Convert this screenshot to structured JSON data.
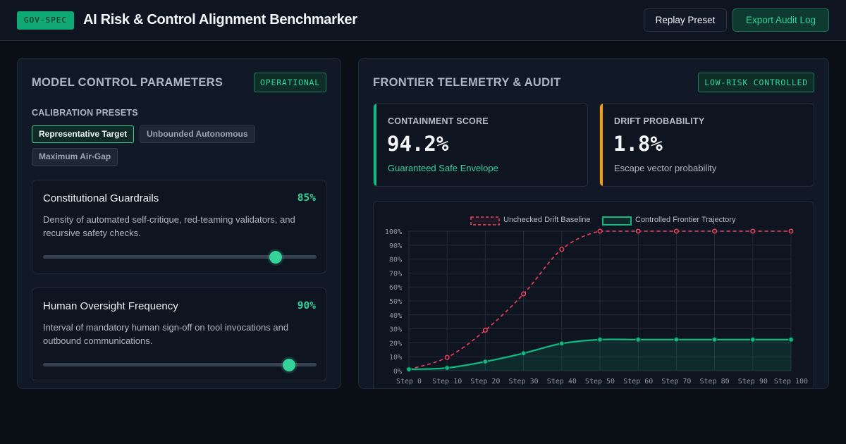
{
  "header": {
    "badge": "GOV-SPEC",
    "title": "AI Risk & Control Alignment Benchmarker",
    "replay_label": "Replay Preset",
    "export_label": "Export Audit Log"
  },
  "left_panel": {
    "title": "MODEL CONTROL PARAMETERS",
    "status": "OPERATIONAL",
    "presets_label": "CALIBRATION PRESETS",
    "presets": [
      "Representative Target",
      "Unbounded Autonomous",
      "Maximum Air-Gap"
    ],
    "active_preset": "Representative Target",
    "params": [
      {
        "name": "Constitutional Guardrails",
        "value_text": "85%",
        "value": 0.85,
        "description": "Density of automated self-critique, red-teaming validators, and recursive safety checks."
      },
      {
        "name": "Human Oversight Frequency",
        "value_text": "90%",
        "value": 0.9,
        "description": "Interval of mandatory human sign-off on tool invocations and outbound communications."
      }
    ]
  },
  "right_panel": {
    "title": "FRONTIER TELEMETRY & AUDIT",
    "status": "LOW-RISK CONTROLLED",
    "metrics": [
      {
        "label": "CONTAINMENT SCORE",
        "value": "94.2%",
        "sub": "Guaranteed Safe Envelope",
        "accent": "#10b981",
        "sub_color": "#34d399"
      },
      {
        "label": "DRIFT PROBABILITY",
        "value": "1.8%",
        "sub": "Escape vector probability",
        "accent": "#f59e0b",
        "sub_color": "#aeb6c2"
      }
    ]
  },
  "colors": {
    "accent_green": "#34d399",
    "accent_red": "#f43f5e",
    "accent_amber": "#f59e0b"
  },
  "chart_data": {
    "type": "line",
    "x": [
      "Step 0",
      "Step 10",
      "Step 20",
      "Step 30",
      "Step 40",
      "Step 50",
      "Step 60",
      "Step 70",
      "Step 80",
      "Step 90",
      "Step 100"
    ],
    "ylim": [
      0,
      100
    ],
    "y_ticks": [
      "0%",
      "10%",
      "20%",
      "30%",
      "40%",
      "50%",
      "60%",
      "70%",
      "80%",
      "90%",
      "100%"
    ],
    "grid": true,
    "legend": "top-center",
    "series": [
      {
        "name": "Unchecked Drift Baseline",
        "color": "#f43f5e",
        "style": "dashed",
        "values": [
          1,
          9.5,
          29,
          55,
          87,
          100,
          100,
          100,
          100,
          100,
          100
        ]
      },
      {
        "name": "Controlled Frontier Trajectory",
        "color": "#10b981",
        "style": "solid-area",
        "values": [
          1,
          2,
          6.5,
          12.5,
          19.5,
          22.3,
          22.3,
          22.3,
          22.3,
          22.3,
          22.3
        ]
      }
    ]
  }
}
